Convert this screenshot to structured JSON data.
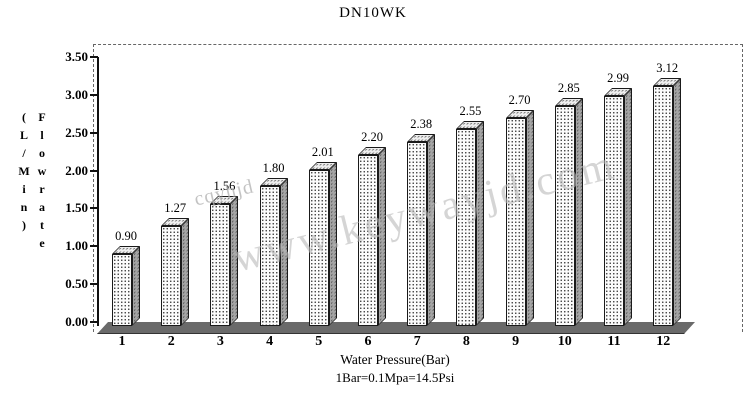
{
  "title": "DN10WK",
  "watermarks": {
    "small": "cqyhjd",
    "large": "www.keywayjd.com"
  },
  "chart_data": {
    "type": "bar",
    "title": "DN10WK",
    "categories": [
      "1",
      "2",
      "3",
      "4",
      "5",
      "6",
      "7",
      "8",
      "9",
      "10",
      "11",
      "12"
    ],
    "values": [
      0.9,
      1.27,
      1.56,
      1.8,
      2.01,
      2.2,
      2.38,
      2.55,
      2.7,
      2.85,
      2.99,
      3.12
    ],
    "value_labels": [
      "0.90",
      "1.27",
      "1.56",
      "1.80",
      "2.01",
      "2.20",
      "2.38",
      "2.55",
      "2.70",
      "2.85",
      "2.99",
      "3.12"
    ],
    "xlabel": "Water Pressure(Bar)",
    "xlabel_note": "1Bar=0.1Mpa=14.5Psi",
    "ylabel": "Flowrate (L/Min)",
    "ylabel_col1": "(L/Min)",
    "ylabel_col2": "Flowrate",
    "ylim": [
      0,
      3.5
    ],
    "ytick_step": 0.5,
    "yticks": [
      "0.00",
      "0.50",
      "1.00",
      "1.50",
      "2.00",
      "2.50",
      "3.00",
      "3.50"
    ],
    "grid": false,
    "legend": false,
    "bar_style": "3d-stippled"
  }
}
